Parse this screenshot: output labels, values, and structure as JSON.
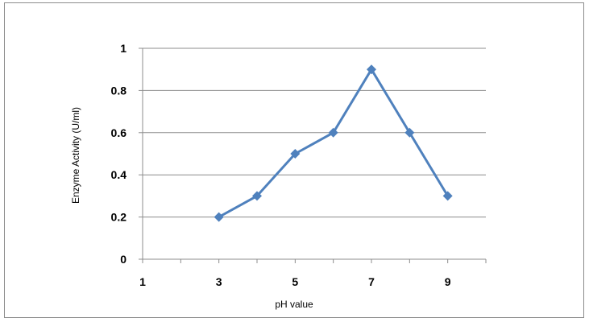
{
  "chart_data": {
    "type": "line",
    "xlabel": "pH  value",
    "ylabel": "Enzyme Activity (U/ml)",
    "xlim": [
      1,
      10
    ],
    "ylim": [
      0,
      1
    ],
    "x_ticks": [
      "1",
      "3",
      "5",
      "7",
      "9"
    ],
    "y_ticks": [
      "0",
      "0.2",
      "0.4",
      "0.6",
      "0.8",
      "1"
    ],
    "grid": "horizontal",
    "legend": "none",
    "series": [
      {
        "color": "#4f81bd",
        "marker": "diamond",
        "x": [
          3,
          4,
          5,
          6,
          7,
          8,
          9
        ],
        "y": [
          0.2,
          0.3,
          0.5,
          0.6,
          0.9,
          0.6,
          0.3
        ]
      }
    ]
  }
}
